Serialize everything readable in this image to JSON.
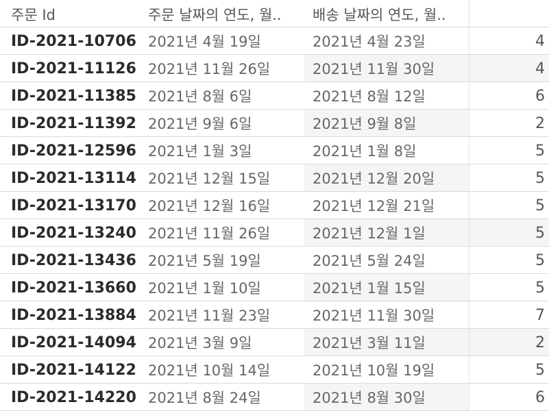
{
  "header": {
    "col_order_id": "주문 Id",
    "col_order_date": "주문 날짜의 연도, 월..",
    "col_ship_date": "배송 날짜의 연도, 월..",
    "col_value": ""
  },
  "rows": [
    {
      "id": "ID-2021-10706",
      "order_date": "2021년 4월 19일",
      "ship_date": "2021년 4월 23일",
      "value": "4"
    },
    {
      "id": "ID-2021-11126",
      "order_date": "2021년 11월 26일",
      "ship_date": "2021년 11월 30일",
      "value": "4"
    },
    {
      "id": "ID-2021-11385",
      "order_date": "2021년 8월 6일",
      "ship_date": "2021년 8월 12일",
      "value": "6"
    },
    {
      "id": "ID-2021-11392",
      "order_date": "2021년 9월 6일",
      "ship_date": "2021년 9월 8일",
      "value": "2"
    },
    {
      "id": "ID-2021-12596",
      "order_date": "2021년 1월 3일",
      "ship_date": "2021년 1월 8일",
      "value": "5"
    },
    {
      "id": "ID-2021-13114",
      "order_date": "2021년 12월 15일",
      "ship_date": "2021년 12월 20일",
      "value": "5"
    },
    {
      "id": "ID-2021-13170",
      "order_date": "2021년 12월 16일",
      "ship_date": "2021년 12월 21일",
      "value": "5"
    },
    {
      "id": "ID-2021-13240",
      "order_date": "2021년 11월 26일",
      "ship_date": "2021년 12월 1일",
      "value": "5"
    },
    {
      "id": "ID-2021-13436",
      "order_date": "2021년 5월 19일",
      "ship_date": "2021년 5월 24일",
      "value": "5"
    },
    {
      "id": "ID-2021-13660",
      "order_date": "2021년 1월 10일",
      "ship_date": "2021년 1월 15일",
      "value": "5"
    },
    {
      "id": "ID-2021-13884",
      "order_date": "2021년 11월 23일",
      "ship_date": "2021년 11월 30일",
      "value": "7"
    },
    {
      "id": "ID-2021-14094",
      "order_date": "2021년 3월 9일",
      "ship_date": "2021년 3월 11일",
      "value": "2"
    },
    {
      "id": "ID-2021-14122",
      "order_date": "2021년 10월 14일",
      "ship_date": "2021년 10월 19일",
      "value": "5"
    },
    {
      "id": "ID-2021-14220",
      "order_date": "2021년 8월 24일",
      "ship_date": "2021년 8월 30일",
      "value": "6"
    }
  ]
}
